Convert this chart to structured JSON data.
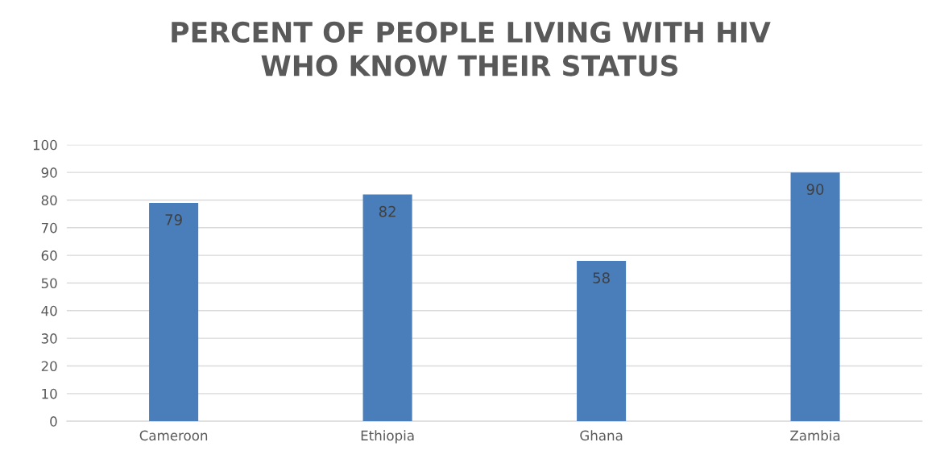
{
  "chart_data": {
    "type": "bar",
    "title": "PERCENT OF PEOPLE LIVING WITH HIV\nWHO KNOW THEIR STATUS",
    "categories": [
      "Cameroon",
      "Ethiopia",
      "Ghana",
      "Zambia"
    ],
    "values": [
      79,
      82,
      58,
      90
    ],
    "color": "#4a7ebb",
    "ylim": [
      0,
      100
    ],
    "yticks": [
      0,
      10,
      20,
      30,
      40,
      50,
      60,
      70,
      80,
      90,
      100
    ],
    "grid": "y",
    "data_labels": true
  }
}
